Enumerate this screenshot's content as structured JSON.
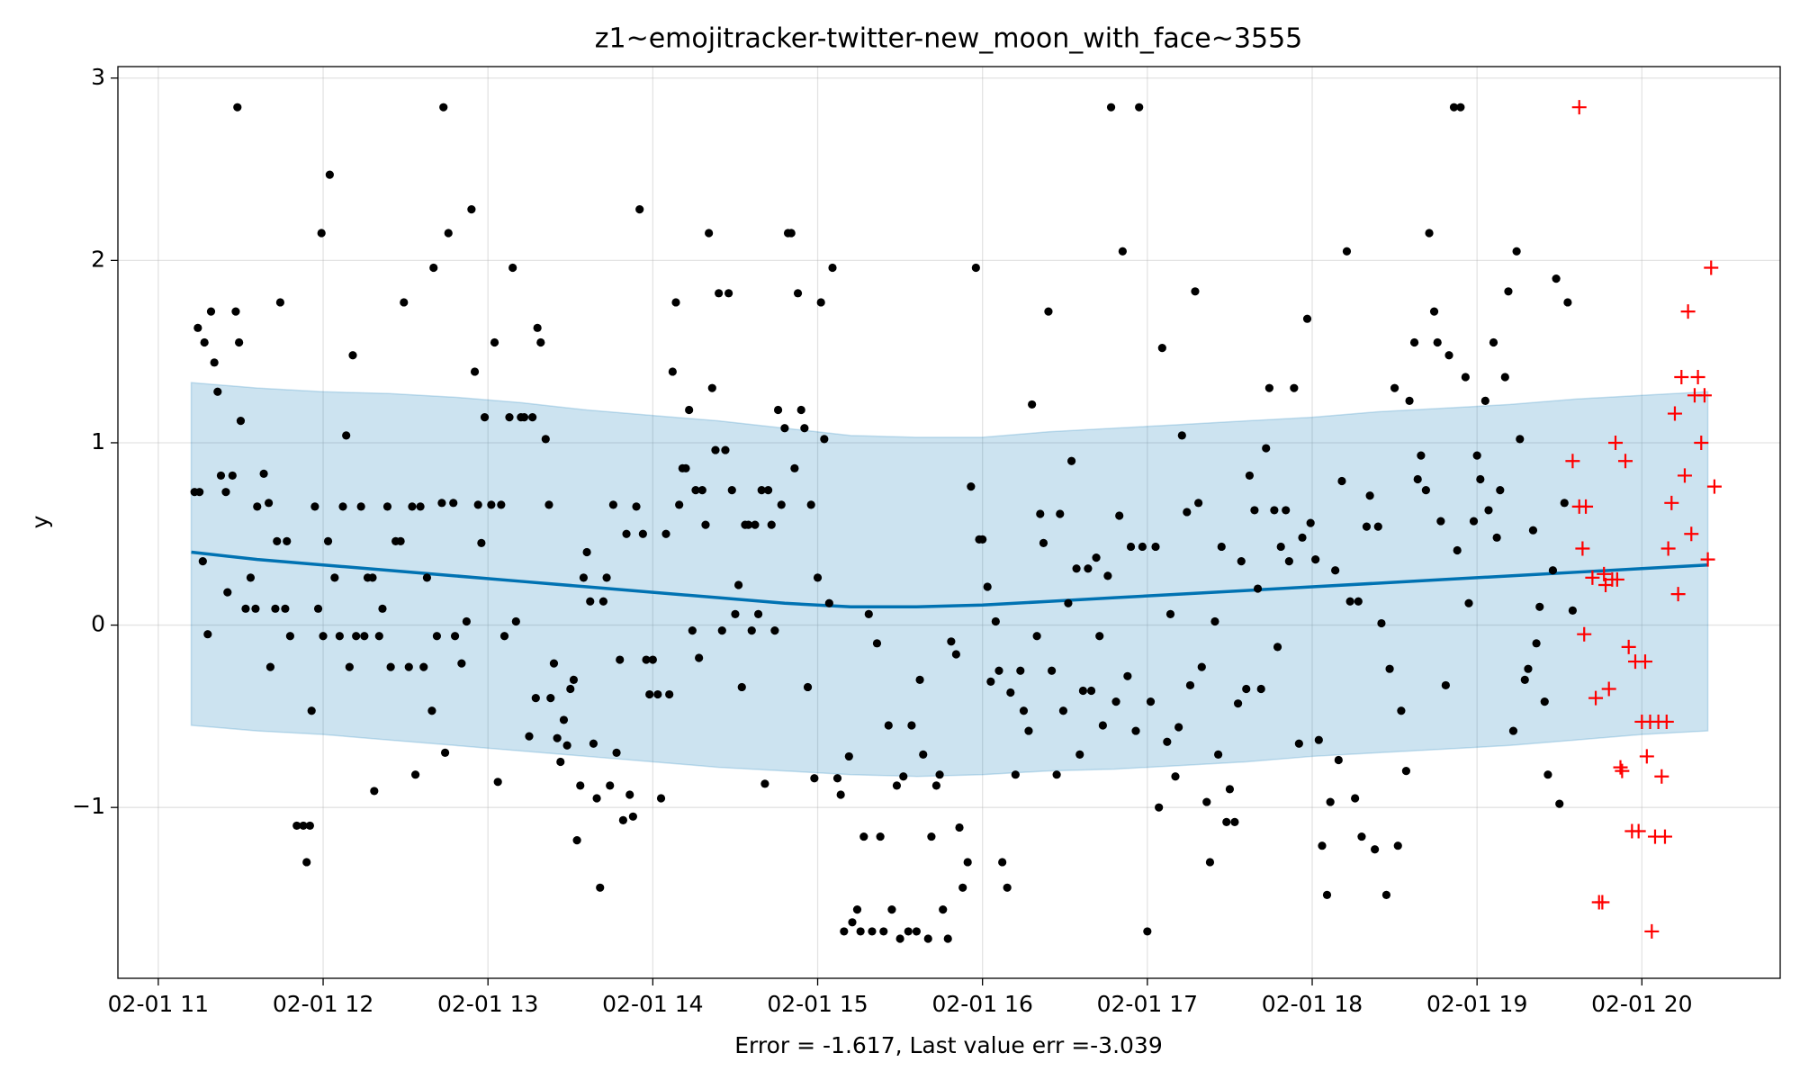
{
  "chart_data": {
    "type": "scatter",
    "title": "z1~emojitracker-twitter-new_moon_with_face~3555",
    "xlabel": "Error = -1.617, Last value err =-3.039",
    "ylabel": "y",
    "xlim": [
      10.755,
      20.839
    ],
    "ylim": [
      -1.937,
      3.063
    ],
    "xticks": [
      {
        "value": 11,
        "label": "02-01 11"
      },
      {
        "value": 12,
        "label": "02-01 12"
      },
      {
        "value": 13,
        "label": "02-01 13"
      },
      {
        "value": 14,
        "label": "02-01 14"
      },
      {
        "value": 15,
        "label": "02-01 15"
      },
      {
        "value": 16,
        "label": "02-01 16"
      },
      {
        "value": 17,
        "label": "02-01 17"
      },
      {
        "value": 18,
        "label": "02-01 18"
      },
      {
        "value": 19,
        "label": "02-01 19"
      },
      {
        "value": 20,
        "label": "02-01 20"
      }
    ],
    "yticks": [
      3,
      2,
      1,
      0,
      {
        "value": -1,
        "label": "−1"
      }
    ],
    "grid": true,
    "series": [
      {
        "type": "band",
        "color": "#0072b2",
        "x": [
          11.2,
          11.6,
          12.0,
          12.4,
          12.8,
          13.2,
          13.6,
          14.0,
          14.4,
          14.8,
          15.2,
          15.6,
          16.0,
          16.4,
          16.8,
          17.2,
          17.6,
          18.0,
          18.4,
          18.8,
          19.2,
          19.6,
          20.0,
          20.4
        ],
        "upper": [
          1.33,
          1.3,
          1.28,
          1.27,
          1.25,
          1.22,
          1.18,
          1.15,
          1.12,
          1.08,
          1.04,
          1.03,
          1.03,
          1.06,
          1.08,
          1.1,
          1.12,
          1.14,
          1.17,
          1.19,
          1.21,
          1.24,
          1.26,
          1.28
        ],
        "lower": [
          -0.55,
          -0.58,
          -0.6,
          -0.63,
          -0.66,
          -0.69,
          -0.72,
          -0.75,
          -0.78,
          -0.8,
          -0.82,
          -0.83,
          -0.82,
          -0.8,
          -0.79,
          -0.77,
          -0.75,
          -0.72,
          -0.7,
          -0.68,
          -0.66,
          -0.63,
          -0.6,
          -0.58
        ]
      },
      {
        "type": "line",
        "color": "#0072b2",
        "x": [
          11.2,
          11.6,
          12.0,
          12.4,
          12.8,
          13.2,
          13.6,
          14.0,
          14.4,
          14.8,
          15.2,
          15.6,
          16.0,
          16.4,
          16.8,
          17.2,
          17.6,
          18.0,
          18.4,
          18.8,
          19.2,
          19.6,
          20.0,
          20.4
        ],
        "values": [
          0.4,
          0.36,
          0.33,
          0.3,
          0.27,
          0.24,
          0.21,
          0.18,
          0.15,
          0.12,
          0.1,
          0.1,
          0.11,
          0.13,
          0.15,
          0.17,
          0.19,
          0.21,
          0.23,
          0.25,
          0.27,
          0.29,
          0.31,
          0.33
        ]
      },
      {
        "type": "scatter",
        "marker": "dot",
        "color": "#000000",
        "x": [
          11.22,
          11.25,
          11.24,
          11.28,
          11.27,
          11.3,
          11.32,
          11.34,
          11.36,
          11.38,
          11.41,
          11.42,
          11.45,
          11.47,
          11.49,
          11.5,
          11.48,
          11.53,
          11.56,
          11.59,
          11.6,
          11.64,
          11.67,
          11.68,
          11.71,
          11.72,
          11.74,
          11.77,
          11.78,
          11.8,
          11.84,
          11.88,
          11.9,
          11.92,
          11.93,
          11.95,
          11.97,
          12.0,
          11.99,
          12.03,
          12.04,
          12.07,
          12.1,
          12.12,
          12.14,
          12.16,
          12.18,
          12.2,
          12.23,
          12.25,
          12.27,
          12.3,
          12.31,
          12.34,
          12.36,
          12.39,
          12.41,
          12.44,
          12.47,
          12.49,
          12.52,
          12.54,
          12.56,
          12.59,
          12.61,
          12.63,
          12.66,
          12.67,
          12.69,
          12.72,
          12.74,
          12.76,
          12.79,
          12.8,
          12.84,
          12.87,
          12.9,
          12.92,
          12.94,
          12.96,
          12.98,
          12.73,
          13.02,
          13.04,
          13.06,
          13.08,
          13.1,
          13.13,
          13.15,
          13.17,
          13.2,
          13.22,
          13.25,
          13.27,
          13.29,
          13.3,
          13.32,
          13.35,
          13.37,
          13.38,
          13.4,
          13.42,
          13.44,
          13.46,
          13.48,
          13.5,
          13.52,
          13.54,
          13.56,
          13.58,
          13.6,
          13.62,
          13.64,
          13.66,
          13.68,
          13.7,
          13.72,
          13.74,
          13.76,
          13.78,
          13.8,
          13.82,
          13.84,
          13.86,
          13.88,
          13.9,
          13.92,
          13.94,
          13.96,
          13.98,
          14.0,
          14.03,
          14.05,
          14.08,
          14.1,
          14.12,
          14.14,
          14.16,
          14.18,
          14.2,
          14.22,
          14.24,
          14.26,
          14.28,
          14.3,
          14.32,
          14.34,
          14.36,
          14.38,
          14.4,
          14.42,
          14.44,
          14.46,
          14.48,
          14.5,
          14.52,
          14.54,
          14.56,
          14.58,
          14.6,
          14.62,
          14.64,
          14.66,
          14.68,
          14.7,
          14.72,
          14.74,
          14.76,
          14.78,
          14.8,
          14.82,
          14.84,
          14.86,
          14.88,
          14.9,
          14.92,
          14.94,
          14.96,
          14.98,
          15.0,
          15.02,
          15.04,
          15.07,
          15.09,
          15.12,
          15.14,
          15.16,
          15.19,
          15.21,
          15.24,
          15.26,
          15.28,
          15.31,
          15.33,
          15.36,
          15.38,
          15.4,
          15.43,
          15.45,
          15.48,
          15.5,
          15.52,
          15.55,
          15.57,
          15.6,
          15.62,
          15.64,
          15.67,
          15.69,
          15.72,
          15.74,
          15.76,
          15.79,
          15.81,
          15.84,
          15.86,
          15.88,
          15.91,
          15.93,
          15.96,
          15.98,
          16.0,
          16.03,
          16.05,
          16.08,
          16.1,
          16.12,
          16.15,
          16.17,
          16.2,
          16.23,
          16.25,
          16.28,
          16.3,
          16.33,
          16.35,
          16.37,
          16.4,
          16.42,
          16.45,
          16.47,
          16.49,
          16.52,
          16.54,
          16.57,
          16.59,
          16.61,
          16.64,
          16.66,
          16.69,
          16.71,
          16.73,
          16.76,
          16.78,
          16.81,
          16.83,
          16.85,
          16.88,
          16.9,
          16.93,
          16.95,
          16.97,
          17.0,
          17.02,
          17.05,
          17.07,
          17.09,
          17.12,
          17.14,
          17.17,
          17.19,
          17.21,
          17.24,
          17.26,
          17.29,
          17.31,
          17.33,
          17.36,
          17.38,
          17.41,
          17.43,
          17.45,
          17.48,
          17.5,
          17.53,
          17.55,
          17.57,
          17.6,
          17.62,
          17.65,
          17.67,
          17.69,
          17.72,
          17.74,
          17.77,
          17.79,
          17.81,
          17.84,
          17.86,
          17.89,
          17.92,
          17.94,
          17.97,
          17.99,
          18.02,
          18.04,
          18.06,
          18.09,
          18.11,
          18.14,
          18.16,
          18.18,
          18.21,
          18.23,
          18.26,
          18.28,
          18.3,
          18.33,
          18.35,
          18.38,
          18.4,
          18.42,
          18.45,
          18.47,
          18.5,
          18.52,
          18.54,
          18.57,
          18.59,
          18.62,
          18.64,
          18.66,
          18.69,
          18.71,
          18.74,
          18.76,
          18.78,
          18.81,
          18.83,
          18.86,
          18.88,
          18.9,
          18.93,
          18.95,
          18.98,
          19.0,
          19.02,
          19.05,
          19.07,
          19.1,
          19.12,
          19.14,
          19.17,
          19.19,
          19.22,
          19.24,
          19.26,
          19.29,
          19.31,
          19.34,
          19.36,
          19.38,
          19.41,
          19.43,
          19.46,
          19.48,
          19.5,
          19.53,
          19.55,
          19.58
        ],
        "values": [
          0.73,
          0.73,
          1.63,
          1.55,
          0.35,
          -0.05,
          1.72,
          1.44,
          1.28,
          0.82,
          0.73,
          0.18,
          0.82,
          1.72,
          1.55,
          1.12,
          2.84,
          0.09,
          0.26,
          0.09,
          0.65,
          0.83,
          0.67,
          -0.23,
          0.09,
          0.46,
          1.77,
          0.09,
          0.46,
          -0.06,
          -1.1,
          -1.1,
          -1.3,
          -1.1,
          -0.47,
          0.65,
          0.09,
          -0.06,
          2.15,
          0.46,
          2.47,
          0.26,
          -0.06,
          0.65,
          1.04,
          -0.23,
          1.48,
          -0.06,
          0.65,
          -0.06,
          0.26,
          0.26,
          -0.91,
          -0.06,
          0.09,
          0.65,
          -0.23,
          0.46,
          0.46,
          1.77,
          -0.23,
          0.65,
          -0.82,
          0.65,
          -0.23,
          0.26,
          -0.47,
          1.96,
          -0.06,
          0.67,
          -0.7,
          2.15,
          0.67,
          -0.06,
          -0.21,
          0.02,
          2.28,
          1.39,
          0.66,
          0.45,
          1.14,
          2.84,
          0.66,
          1.55,
          -0.86,
          0.66,
          -0.06,
          1.14,
          1.96,
          0.02,
          1.14,
          1.14,
          -0.61,
          1.14,
          -0.4,
          1.63,
          1.55,
          1.02,
          0.66,
          -0.4,
          -0.21,
          -0.62,
          -0.75,
          -0.52,
          -0.66,
          -0.35,
          -0.3,
          -1.18,
          -0.88,
          0.26,
          0.4,
          0.13,
          -0.65,
          -0.95,
          -1.44,
          0.13,
          0.26,
          -0.88,
          0.66,
          -0.7,
          -0.19,
          -1.07,
          0.5,
          -0.93,
          -1.05,
          0.65,
          2.28,
          0.5,
          -0.19,
          -0.38,
          -0.19,
          -0.38,
          -0.95,
          0.5,
          -0.38,
          1.39,
          1.77,
          0.66,
          0.86,
          0.86,
          1.18,
          -0.03,
          0.74,
          -0.18,
          0.74,
          0.55,
          2.15,
          1.3,
          0.96,
          1.82,
          -0.03,
          0.96,
          1.82,
          0.74,
          0.06,
          0.22,
          -0.34,
          0.55,
          0.55,
          -0.03,
          0.55,
          0.06,
          0.74,
          -0.87,
          0.74,
          0.55,
          -0.03,
          1.18,
          0.66,
          1.08,
          2.15,
          2.15,
          0.86,
          1.82,
          1.18,
          1.08,
          -0.34,
          0.66,
          -0.84,
          0.26,
          1.77,
          1.02,
          0.12,
          1.96,
          -0.84,
          -0.93,
          -1.68,
          -0.72,
          -1.63,
          -1.56,
          -1.68,
          -1.16,
          0.06,
          -1.68,
          -0.1,
          -1.16,
          -1.68,
          -0.55,
          -1.56,
          -0.88,
          -1.72,
          -0.83,
          -1.68,
          -0.55,
          -1.68,
          -0.3,
          -0.71,
          -1.72,
          -1.16,
          -0.88,
          -0.82,
          -1.56,
          -1.72,
          -0.09,
          -0.16,
          -1.11,
          -1.44,
          -1.3,
          0.76,
          1.96,
          0.47,
          0.47,
          0.21,
          -0.31,
          0.02,
          -0.25,
          -1.3,
          -1.44,
          -0.37,
          -0.82,
          -0.25,
          -0.47,
          -0.58,
          1.21,
          -0.06,
          0.61,
          0.45,
          1.72,
          -0.25,
          -0.82,
          0.61,
          -0.47,
          0.12,
          0.9,
          0.31,
          -0.71,
          -0.36,
          0.31,
          -0.36,
          0.37,
          -0.06,
          -0.55,
          0.27,
          2.84,
          -0.42,
          0.6,
          2.05,
          -0.28,
          0.43,
          -0.58,
          2.84,
          0.43,
          -1.68,
          -0.42,
          0.43,
          -1.0,
          1.52,
          -0.64,
          0.06,
          -0.83,
          -0.56,
          1.04,
          0.62,
          -0.33,
          1.83,
          0.67,
          -0.23,
          -0.97,
          -1.3,
          0.02,
          -0.71,
          0.43,
          -1.08,
          -0.9,
          -1.08,
          -0.43,
          0.35,
          -0.35,
          0.82,
          0.63,
          0.2,
          -0.35,
          0.97,
          1.3,
          0.63,
          -0.12,
          0.43,
          0.63,
          0.35,
          1.3,
          -0.65,
          0.48,
          1.68,
          0.56,
          0.36,
          -0.63,
          -1.21,
          -1.48,
          -0.97,
          0.3,
          -0.74,
          0.79,
          2.05,
          0.13,
          -0.95,
          0.13,
          -1.16,
          0.54,
          0.71,
          -1.23,
          0.54,
          0.01,
          -1.48,
          -0.24,
          1.3,
          -1.21,
          -0.47,
          -0.8,
          1.23,
          1.55,
          0.8,
          0.93,
          0.74,
          2.15,
          1.72,
          1.55,
          0.57,
          -0.33,
          1.48,
          2.84,
          0.41,
          2.84,
          1.36,
          0.12,
          0.57,
          0.93,
          0.8,
          1.23,
          0.63,
          1.55,
          0.48,
          0.74,
          1.36,
          1.83,
          -0.58,
          2.05,
          1.02,
          -0.3,
          -0.24,
          0.52,
          -0.1,
          0.1,
          -0.42,
          -0.82,
          0.3,
          1.9,
          -0.98,
          0.67,
          1.77,
          0.08
        ]
      },
      {
        "type": "scatter",
        "marker": "plus",
        "color": "#ff0000",
        "x": [
          19.62,
          19.58,
          19.62,
          19.66,
          19.64,
          19.65,
          19.7,
          19.72,
          19.74,
          19.76,
          19.77,
          19.78,
          19.8,
          19.82,
          19.84,
          19.85,
          19.87,
          19.88,
          19.9,
          19.92,
          19.94,
          19.96,
          19.98,
          20.0,
          20.02,
          20.03,
          20.05,
          20.06,
          20.08,
          20.1,
          20.12,
          20.14,
          20.15,
          20.16,
          20.18,
          20.2,
          20.22,
          20.24,
          20.26,
          20.28,
          20.3,
          20.32,
          20.34,
          20.36,
          20.38,
          20.4,
          20.42,
          20.44
        ],
        "values": [
          2.84,
          0.9,
          0.65,
          0.65,
          0.42,
          -0.05,
          0.26,
          -0.4,
          -1.52,
          -1.52,
          0.28,
          0.22,
          -0.35,
          0.25,
          1.0,
          0.25,
          -0.78,
          -0.8,
          0.9,
          -0.12,
          -1.13,
          -0.2,
          -1.13,
          -0.53,
          -0.2,
          -0.72,
          -0.53,
          -1.68,
          -1.16,
          -0.53,
          -0.83,
          -1.16,
          -0.53,
          0.42,
          0.67,
          1.16,
          0.17,
          1.36,
          0.82,
          1.72,
          0.5,
          1.26,
          1.36,
          1.0,
          1.26,
          0.36,
          1.96,
          0.76
        ]
      }
    ]
  }
}
